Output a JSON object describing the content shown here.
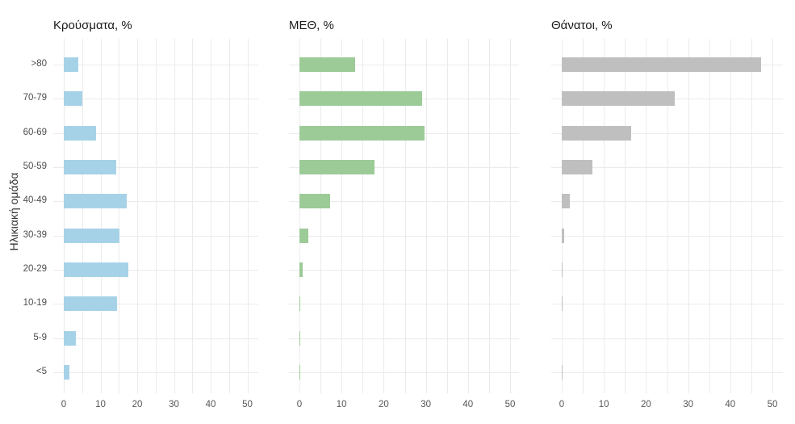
{
  "figure_title": "",
  "y_axis": {
    "title": "Ηλικιακή ομάδα"
  },
  "x_axis": {
    "tick_labels": [
      "0",
      "10",
      "20",
      "30",
      "40",
      "50"
    ]
  },
  "chart_data": {
    "type": "bar",
    "orientation": "horizontal",
    "layout": "three-facet small multiples, shared y categories, y labels only on first facet",
    "title": "",
    "xlabel": "",
    "ylabel": "Ηλικιακή ομάδα",
    "categories": [
      ">80",
      "70-79",
      "60-69",
      "50-59",
      "40-49",
      "30-39",
      "20-29",
      "10-19",
      "5-9",
      "<5"
    ],
    "xticks": [
      0,
      10,
      20,
      30,
      40,
      50
    ],
    "xlim": [
      0,
      53
    ],
    "grid": true,
    "grid_color": "#ebebeb",
    "background_color": "#ffffff",
    "text_color": "#555555",
    "title_color": "#1a1a1a",
    "series": [
      {
        "name": "Κρούσματα, %",
        "color": "#a6d2e8",
        "values": [
          3.9,
          5.0,
          8.8,
          14.2,
          17.2,
          15.2,
          17.6,
          14.6,
          3.2,
          1.6
        ]
      },
      {
        "name": "ΜΕΘ, %",
        "color": "#9ccb98",
        "values": [
          13.3,
          29.1,
          29.6,
          17.9,
          7.3,
          2.1,
          0.8,
          0.2,
          0.1,
          0.15
        ]
      },
      {
        "name": "Θάνατοι, %",
        "color": "#bfbfbf",
        "values": [
          47.3,
          26.9,
          16.5,
          7.3,
          2.0,
          0.5,
          0.15,
          0.1,
          0,
          0.05
        ]
      }
    ]
  }
}
